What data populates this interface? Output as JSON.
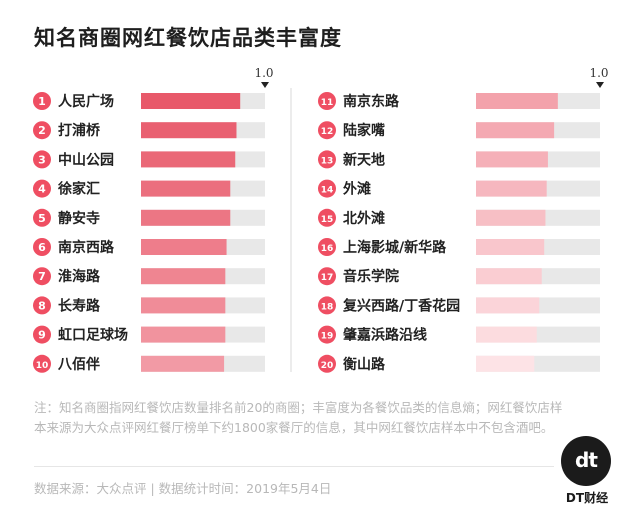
{
  "chart_data": {
    "type": "bar",
    "title": "知名商圈网红餐饮店品类丰富度",
    "scale_max_label": "1.0",
    "xlim": [
      0,
      1
    ],
    "categories": [
      "人民广场",
      "打浦桥",
      "中山公园",
      "徐家汇",
      "静安寺",
      "南京西路",
      "淮海路",
      "长寿路",
      "虹口足球场",
      "八佰伴",
      "南京东路",
      "陆家嘴",
      "新天地",
      "外滩",
      "北外滩",
      "上海影城/新华路",
      "音乐学院",
      "复兴西路/丁香花园",
      "肇嘉浜路沿线",
      "衡山路"
    ],
    "ranks": [
      "1",
      "2",
      "3",
      "4",
      "5",
      "6",
      "7",
      "8",
      "9",
      "10",
      "11",
      "12",
      "13",
      "14",
      "15",
      "16",
      "17",
      "18",
      "19",
      "20"
    ],
    "values": [
      0.8,
      0.77,
      0.76,
      0.72,
      0.72,
      0.69,
      0.68,
      0.68,
      0.68,
      0.67,
      0.66,
      0.63,
      0.58,
      0.57,
      0.56,
      0.55,
      0.53,
      0.51,
      0.49,
      0.47
    ],
    "colors": {
      "bar_start": "#e8596a",
      "bar_end": "#fde3e6",
      "track": "#e8e8e8",
      "badge": "#ef4e62"
    }
  },
  "footnote": "注：知名商圈指网红餐饮店数量排名前20的商圈；丰富度为各餐饮品类的信息熵；网红餐饮店样本来源为大众点评网红餐厅榜单下约1800家餐厅的信息，其中网红餐饮店样本中不包含酒吧。",
  "source": "数据来源：大众点评 | 数据统计时间：2019年5月4日",
  "logo": {
    "mark": "dt",
    "name": "DT财经"
  }
}
